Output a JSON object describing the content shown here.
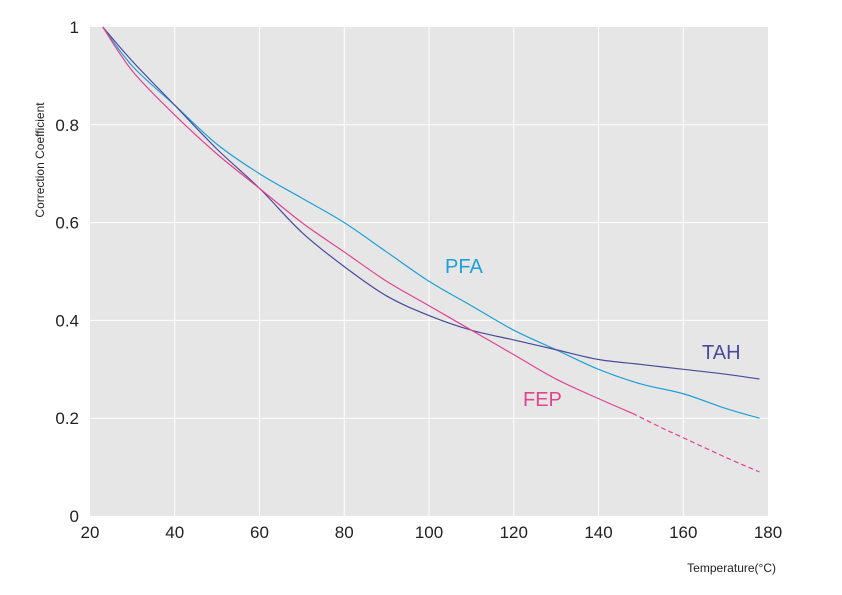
{
  "chart_data": {
    "type": "line",
    "xlabel": "Temperature(°C)",
    "ylabel": "Correction Coefficient",
    "xlim": [
      20,
      180
    ],
    "ylim": [
      0,
      1
    ],
    "x_ticks": [
      "20",
      "40",
      "60",
      "80",
      "100",
      "120",
      "140",
      "160",
      "180"
    ],
    "y_ticks": [
      "0",
      "0.2",
      "0.4",
      "0.6",
      "0.8",
      "1"
    ],
    "grid": true,
    "background": "#e6e6e6",
    "series": [
      {
        "name": "PFA",
        "color": "#1ea0d8",
        "points": [
          [
            23,
            1.0
          ],
          [
            30,
            0.92
          ],
          [
            40,
            0.84
          ],
          [
            50,
            0.76
          ],
          [
            60,
            0.7
          ],
          [
            70,
            0.65
          ],
          [
            80,
            0.6
          ],
          [
            90,
            0.54
          ],
          [
            100,
            0.48
          ],
          [
            110,
            0.43
          ],
          [
            120,
            0.38
          ],
          [
            130,
            0.34
          ],
          [
            140,
            0.3
          ],
          [
            150,
            0.27
          ],
          [
            160,
            0.25
          ],
          [
            170,
            0.22
          ],
          [
            178,
            0.2
          ]
        ]
      },
      {
        "name": "TAH",
        "color": "#4a4a9c",
        "points": [
          [
            23,
            1.0
          ],
          [
            30,
            0.93
          ],
          [
            40,
            0.84
          ],
          [
            50,
            0.75
          ],
          [
            60,
            0.67
          ],
          [
            70,
            0.58
          ],
          [
            80,
            0.51
          ],
          [
            90,
            0.45
          ],
          [
            100,
            0.41
          ],
          [
            110,
            0.38
          ],
          [
            120,
            0.36
          ],
          [
            130,
            0.34
          ],
          [
            140,
            0.32
          ],
          [
            150,
            0.31
          ],
          [
            160,
            0.3
          ],
          [
            170,
            0.29
          ],
          [
            178,
            0.28
          ]
        ]
      },
      {
        "name": "FEP",
        "color": "#e0458f",
        "points": [
          [
            23,
            1.0
          ],
          [
            30,
            0.91
          ],
          [
            40,
            0.82
          ],
          [
            50,
            0.74
          ],
          [
            60,
            0.67
          ],
          [
            70,
            0.6
          ],
          [
            80,
            0.54
          ],
          [
            90,
            0.48
          ],
          [
            100,
            0.43
          ],
          [
            110,
            0.38
          ],
          [
            120,
            0.33
          ],
          [
            130,
            0.28
          ],
          [
            140,
            0.24
          ],
          [
            148,
            0.21
          ]
        ],
        "extrapolated_points": [
          [
            148,
            0.21
          ],
          [
            155,
            0.18
          ],
          [
            160,
            0.16
          ],
          [
            170,
            0.12
          ],
          [
            178,
            0.09
          ]
        ]
      }
    ]
  }
}
